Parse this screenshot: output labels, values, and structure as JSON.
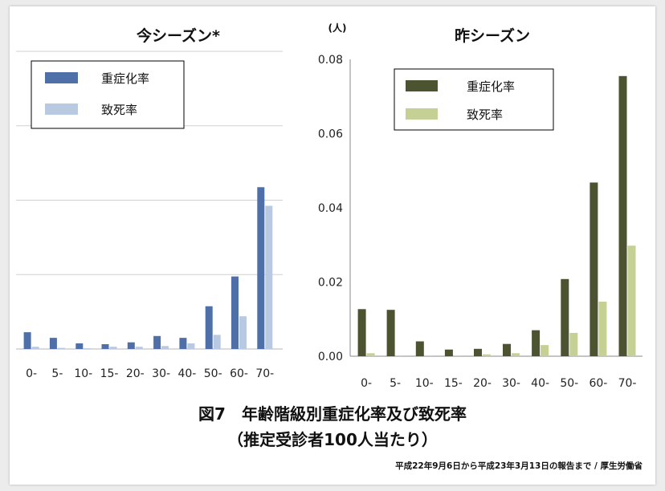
{
  "chart_data": [
    {
      "type": "bar",
      "title": "今シーズン*",
      "categories": [
        "0-",
        "5-",
        "10-",
        "15-",
        "20-",
        "30-",
        "40-",
        "50-",
        "60-",
        "70-"
      ],
      "series": [
        {
          "name": "重症化率",
          "values": [
            0.0045,
            0.003,
            0.0015,
            0.0013,
            0.0018,
            0.0035,
            0.003,
            0.0115,
            0.0195,
            0.0435
          ]
        },
        {
          "name": "致死率",
          "values": [
            0.0006,
            0.0003,
            0.0002,
            0.0006,
            0.0006,
            0.0008,
            0.0015,
            0.0038,
            0.0088,
            0.0385
          ]
        }
      ],
      "ylim": [
        0,
        0.08
      ],
      "grid": true,
      "legend": "top-left",
      "colors": [
        "#4f6fa8",
        "#b9c9e1"
      ]
    },
    {
      "type": "bar",
      "title": "昨シーズン",
      "unit": "(人)",
      "categories": [
        "0-",
        "5-",
        "10-",
        "15-",
        "20-",
        "30-",
        "40-",
        "50-",
        "60-",
        "70-"
      ],
      "yticks": [
        "0.08",
        "0.06",
        "0.04",
        "0.02",
        "0.00"
      ],
      "series": [
        {
          "name": "重症化率",
          "values": [
            0.0127,
            0.0125,
            0.004,
            0.0018,
            0.002,
            0.0033,
            0.007,
            0.0208,
            0.0468,
            0.0755
          ]
        },
        {
          "name": "致死率",
          "values": [
            0.0008,
            0.0002,
            0.0002,
            0.0002,
            0.0005,
            0.0008,
            0.003,
            0.0063,
            0.0147,
            0.0298
          ]
        }
      ],
      "ylim": [
        0,
        0.08
      ],
      "grid": false,
      "legend": "top-left",
      "colors": [
        "#4c5331",
        "#c5d095"
      ]
    }
  ],
  "caption": {
    "line1": "図7　年齢階級別重症化率及び致死率",
    "line2": "（推定受診者100人当たり）",
    "source": "平成22年9月6日から平成23年3月13日の報告まで / 厚生労働省"
  }
}
